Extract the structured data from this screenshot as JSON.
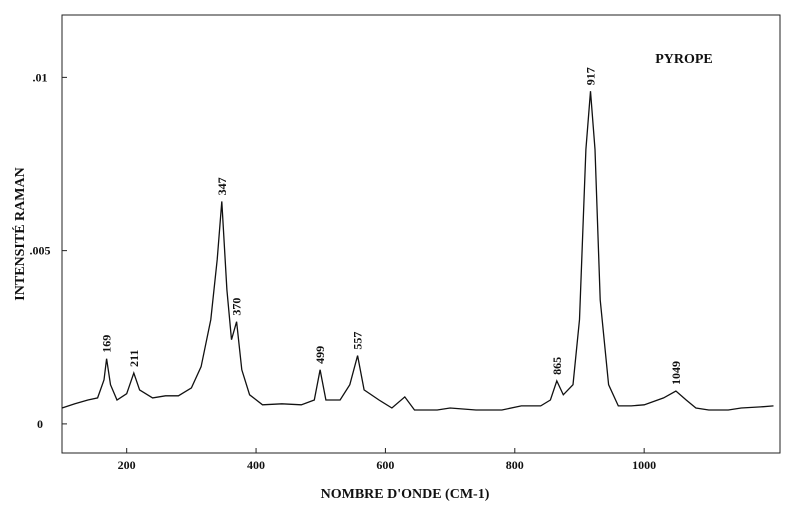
{
  "chart_data": {
    "type": "line",
    "title": "PYROPE",
    "x_label": "NOMBRE D'ONDE (CM-1)",
    "y_label": "INTENSITÉ RAMAN",
    "x": [
      100,
      120,
      140,
      155,
      165,
      169,
      175,
      185,
      200,
      211,
      220,
      240,
      260,
      280,
      300,
      315,
      330,
      340,
      347,
      355,
      362,
      370,
      378,
      390,
      410,
      440,
      470,
      490,
      499,
      508,
      530,
      545,
      557,
      567,
      590,
      610,
      630,
      645,
      680,
      700,
      740,
      780,
      810,
      840,
      855,
      865,
      875,
      890,
      900,
      910,
      917,
      924,
      932,
      945,
      960,
      980,
      1000,
      1030,
      1049,
      1065,
      1080,
      1100,
      1130,
      1150,
      1180,
      1200
    ],
    "series": [
      {
        "color": "#111111",
        "values": [
          0.00046,
          0.00058,
          0.00069,
          0.00075,
          0.00127,
          0.00188,
          0.00113,
          0.00069,
          0.00087,
          0.00147,
          0.00098,
          0.00075,
          0.00081,
          0.00081,
          0.00104,
          0.00165,
          0.00301,
          0.00474,
          0.00642,
          0.00387,
          0.00243,
          0.00295,
          0.00156,
          0.00084,
          0.00055,
          0.00058,
          0.00055,
          0.00069,
          0.00156,
          0.00069,
          0.00069,
          0.00113,
          0.00197,
          0.00098,
          0.00069,
          0.00046,
          0.00078,
          0.0004,
          0.0004,
          0.00046,
          0.0004,
          0.0004,
          0.00052,
          0.00052,
          0.00069,
          0.00124,
          0.00084,
          0.00113,
          0.00301,
          0.00792,
          0.0096,
          0.00792,
          0.00358,
          0.00113,
          0.00052,
          0.00052,
          0.00055,
          0.00075,
          0.00095,
          0.00069,
          0.00046,
          0.0004,
          0.0004,
          0.00046,
          0.00049,
          0.00052
        ]
      }
    ],
    "peak_labels": [
      169,
      211,
      347,
      370,
      499,
      557,
      865,
      917,
      1049
    ],
    "xlim": [
      100,
      1210
    ],
    "ylim": [
      -0.00084,
      0.0118
    ],
    "xticks": [
      200,
      400,
      600,
      800,
      1000
    ],
    "yticks": [
      0,
      {
        "value": 0.005,
        "label": ".005"
      },
      {
        "value": 0.01,
        "label": ".01"
      }
    ]
  }
}
